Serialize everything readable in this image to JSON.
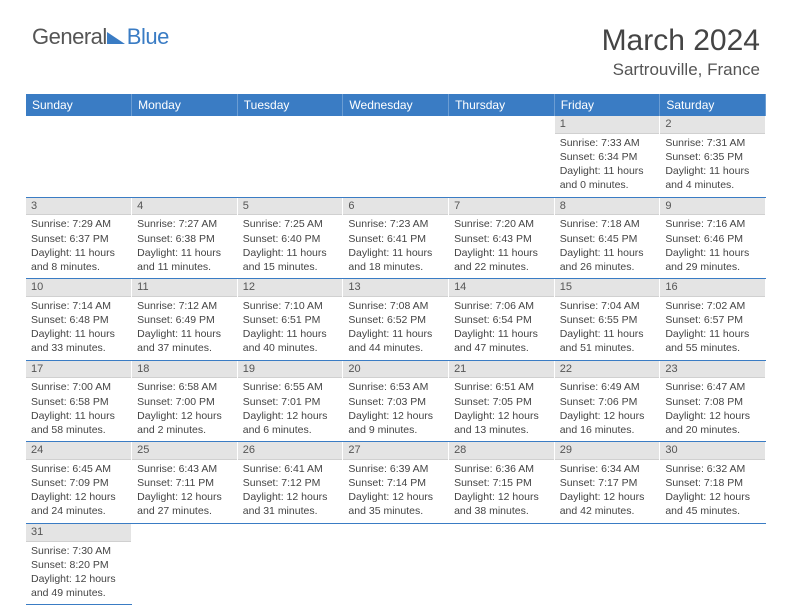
{
  "logo": {
    "part1": "General",
    "part2": "Blue"
  },
  "title": "March 2024",
  "subtitle": "Sartrouville, France",
  "colors": {
    "header_bg": "#3a7cc4",
    "daynum_bg": "#e4e4e4",
    "border": "#3a7cc4",
    "text": "#444444"
  },
  "dayHeaders": [
    "Sunday",
    "Monday",
    "Tuesday",
    "Wednesday",
    "Thursday",
    "Friday",
    "Saturday"
  ],
  "weeks": [
    [
      null,
      null,
      null,
      null,
      null,
      {
        "n": "1",
        "sunrise": "7:33 AM",
        "sunset": "6:34 PM",
        "dl": "11 hours and 0 minutes."
      },
      {
        "n": "2",
        "sunrise": "7:31 AM",
        "sunset": "6:35 PM",
        "dl": "11 hours and 4 minutes."
      }
    ],
    [
      {
        "n": "3",
        "sunrise": "7:29 AM",
        "sunset": "6:37 PM",
        "dl": "11 hours and 8 minutes."
      },
      {
        "n": "4",
        "sunrise": "7:27 AM",
        "sunset": "6:38 PM",
        "dl": "11 hours and 11 minutes."
      },
      {
        "n": "5",
        "sunrise": "7:25 AM",
        "sunset": "6:40 PM",
        "dl": "11 hours and 15 minutes."
      },
      {
        "n": "6",
        "sunrise": "7:23 AM",
        "sunset": "6:41 PM",
        "dl": "11 hours and 18 minutes."
      },
      {
        "n": "7",
        "sunrise": "7:20 AM",
        "sunset": "6:43 PM",
        "dl": "11 hours and 22 minutes."
      },
      {
        "n": "8",
        "sunrise": "7:18 AM",
        "sunset": "6:45 PM",
        "dl": "11 hours and 26 minutes."
      },
      {
        "n": "9",
        "sunrise": "7:16 AM",
        "sunset": "6:46 PM",
        "dl": "11 hours and 29 minutes."
      }
    ],
    [
      {
        "n": "10",
        "sunrise": "7:14 AM",
        "sunset": "6:48 PM",
        "dl": "11 hours and 33 minutes."
      },
      {
        "n": "11",
        "sunrise": "7:12 AM",
        "sunset": "6:49 PM",
        "dl": "11 hours and 37 minutes."
      },
      {
        "n": "12",
        "sunrise": "7:10 AM",
        "sunset": "6:51 PM",
        "dl": "11 hours and 40 minutes."
      },
      {
        "n": "13",
        "sunrise": "7:08 AM",
        "sunset": "6:52 PM",
        "dl": "11 hours and 44 minutes."
      },
      {
        "n": "14",
        "sunrise": "7:06 AM",
        "sunset": "6:54 PM",
        "dl": "11 hours and 47 minutes."
      },
      {
        "n": "15",
        "sunrise": "7:04 AM",
        "sunset": "6:55 PM",
        "dl": "11 hours and 51 minutes."
      },
      {
        "n": "16",
        "sunrise": "7:02 AM",
        "sunset": "6:57 PM",
        "dl": "11 hours and 55 minutes."
      }
    ],
    [
      {
        "n": "17",
        "sunrise": "7:00 AM",
        "sunset": "6:58 PM",
        "dl": "11 hours and 58 minutes."
      },
      {
        "n": "18",
        "sunrise": "6:58 AM",
        "sunset": "7:00 PM",
        "dl": "12 hours and 2 minutes."
      },
      {
        "n": "19",
        "sunrise": "6:55 AM",
        "sunset": "7:01 PM",
        "dl": "12 hours and 6 minutes."
      },
      {
        "n": "20",
        "sunrise": "6:53 AM",
        "sunset": "7:03 PM",
        "dl": "12 hours and 9 minutes."
      },
      {
        "n": "21",
        "sunrise": "6:51 AM",
        "sunset": "7:05 PM",
        "dl": "12 hours and 13 minutes."
      },
      {
        "n": "22",
        "sunrise": "6:49 AM",
        "sunset": "7:06 PM",
        "dl": "12 hours and 16 minutes."
      },
      {
        "n": "23",
        "sunrise": "6:47 AM",
        "sunset": "7:08 PM",
        "dl": "12 hours and 20 minutes."
      }
    ],
    [
      {
        "n": "24",
        "sunrise": "6:45 AM",
        "sunset": "7:09 PM",
        "dl": "12 hours and 24 minutes."
      },
      {
        "n": "25",
        "sunrise": "6:43 AM",
        "sunset": "7:11 PM",
        "dl": "12 hours and 27 minutes."
      },
      {
        "n": "26",
        "sunrise": "6:41 AM",
        "sunset": "7:12 PM",
        "dl": "12 hours and 31 minutes."
      },
      {
        "n": "27",
        "sunrise": "6:39 AM",
        "sunset": "7:14 PM",
        "dl": "12 hours and 35 minutes."
      },
      {
        "n": "28",
        "sunrise": "6:36 AM",
        "sunset": "7:15 PM",
        "dl": "12 hours and 38 minutes."
      },
      {
        "n": "29",
        "sunrise": "6:34 AM",
        "sunset": "7:17 PM",
        "dl": "12 hours and 42 minutes."
      },
      {
        "n": "30",
        "sunrise": "6:32 AM",
        "sunset": "7:18 PM",
        "dl": "12 hours and 45 minutes."
      }
    ],
    [
      {
        "n": "31",
        "sunrise": "7:30 AM",
        "sunset": "8:20 PM",
        "dl": "12 hours and 49 minutes."
      },
      null,
      null,
      null,
      null,
      null,
      null
    ]
  ],
  "labels": {
    "sunrise": "Sunrise:",
    "sunset": "Sunset:",
    "daylight": "Daylight:"
  }
}
